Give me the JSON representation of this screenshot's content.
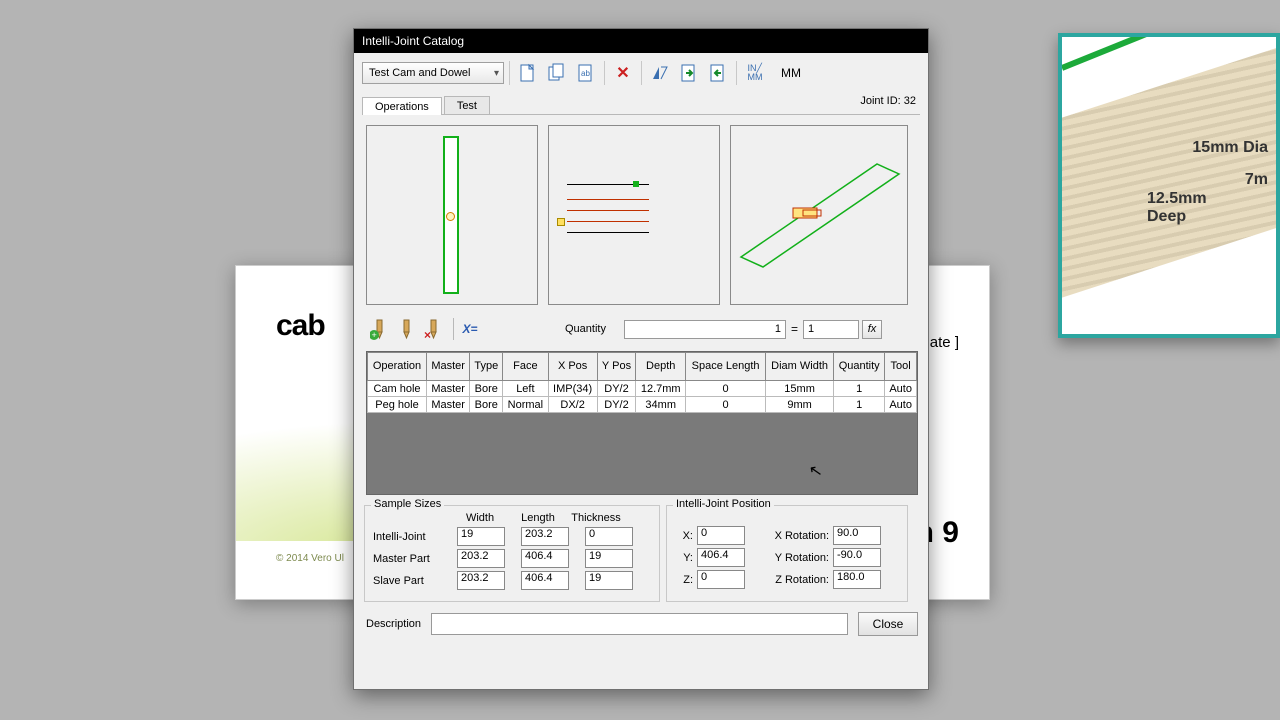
{
  "background": {
    "logo_text": "cab",
    "ultimate_text": "iltimate ]",
    "n9": "n 9",
    "copyright": "© 2014 Vero Ul",
    "callout": {
      "label1": "15mm Dia",
      "label2": "7m",
      "label3": "12.5mm\nDeep"
    }
  },
  "dialog": {
    "title": "Intelli-Joint Catalog",
    "dropdown_value": "Test Cam and Dowel",
    "units_label": "MM",
    "tabs": {
      "operations": "Operations",
      "test": "Test"
    },
    "joint_id_label": "Joint ID: 32",
    "quantity": {
      "label": "Quantity",
      "expr": "1",
      "value": "1",
      "fx": "fx"
    },
    "grid": {
      "columns": [
        "Operation",
        "Master",
        "Type",
        "Face",
        "X Pos",
        "Y Pos",
        "Depth",
        "Space Length",
        "Diam Width",
        "Quantity",
        "Tool"
      ],
      "rows": [
        [
          "Cam hole",
          "Master",
          "Bore",
          "Left",
          "IMP(34)",
          "DY/2",
          "12.7mm",
          "0",
          "15mm",
          "1",
          "Auto"
        ],
        [
          "Peg hole",
          "Master",
          "Bore",
          "Normal",
          "DX/2",
          "DY/2",
          "34mm",
          "0",
          "9mm",
          "1",
          "Auto"
        ]
      ]
    },
    "sample_sizes": {
      "legend": "Sample Sizes",
      "headers": {
        "width": "Width",
        "length": "Length",
        "thickness": "Thickness"
      },
      "intelli": {
        "label": "Intelli-Joint",
        "w": "19",
        "l": "203.2",
        "t": "0"
      },
      "master": {
        "label": "Master Part",
        "w": "203.2",
        "l": "406.4",
        "t": "19"
      },
      "slave": {
        "label": "Slave Part",
        "w": "203.2",
        "l": "406.4",
        "t": "19"
      }
    },
    "position": {
      "legend": "Intelli-Joint Position",
      "x_lbl": "X:",
      "y_lbl": "Y:",
      "z_lbl": "Z:",
      "x": "0",
      "y": "406.4",
      "z": "0",
      "xr_lbl": "X Rotation:",
      "yr_lbl": "Y Rotation:",
      "zr_lbl": "Z Rotation:",
      "xr": "90.0",
      "yr": "-90.0",
      "zr": "180.0"
    },
    "description_label": "Description",
    "close": "Close"
  }
}
